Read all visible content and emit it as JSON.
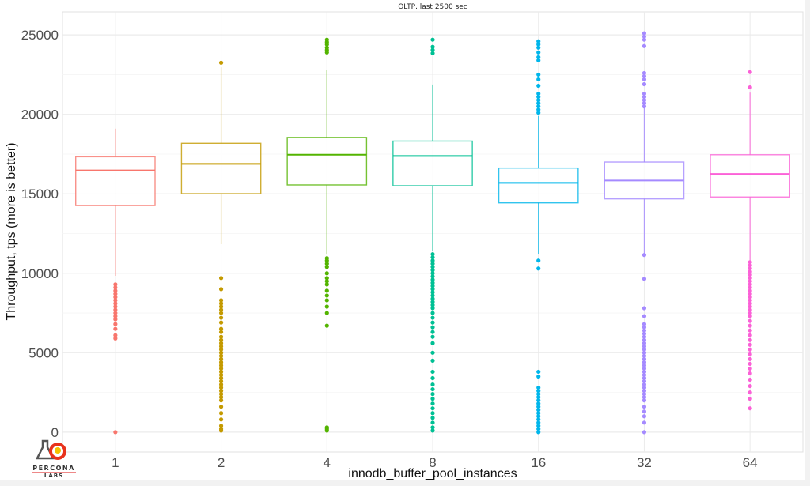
{
  "chart_data": {
    "type": "box",
    "title": "OLTP, last 2500 sec",
    "xlabel": "innodb_buffer_pool_instances",
    "ylabel": "Throughput, tps (more is better)",
    "ylim": [
      -1250,
      26450
    ],
    "yticks": [
      0,
      5000,
      10000,
      15000,
      20000,
      25000
    ],
    "grid": true,
    "legend": "none",
    "categories": [
      "1",
      "2",
      "4",
      "8",
      "16",
      "32",
      "64"
    ],
    "colors": [
      "#F8766D",
      "#C49A00",
      "#53B400",
      "#00C094",
      "#00B6EB",
      "#A58AFF",
      "#FB61D7"
    ],
    "boxes": [
      {
        "whisker_low": 9840,
        "q1": 14260,
        "median": 16470,
        "q3": 17330,
        "whisker_high": 19100,
        "outliers": [
          9300,
          9100,
          8900,
          8700,
          8500,
          8300,
          8100,
          7900,
          7700,
          7500,
          7300,
          7100,
          6800,
          6500,
          6100,
          5900,
          0
        ]
      },
      {
        "whisker_low": 11830,
        "q1": 15010,
        "median": 16880,
        "q3": 18180,
        "whisker_high": 22960,
        "outliers": [
          23250,
          9700,
          9000,
          8300,
          8100,
          7900,
          7700,
          7500,
          7200,
          6900,
          6500,
          6300,
          6000,
          5800,
          5600,
          5400,
          5200,
          5000,
          4800,
          4600,
          4400,
          4200,
          4000,
          3800,
          3600,
          3400,
          3200,
          3000,
          2800,
          2600,
          2400,
          2200,
          2000,
          1600,
          1200,
          800,
          400,
          200,
          100
        ]
      },
      {
        "whisker_low": 11180,
        "q1": 15560,
        "median": 17460,
        "q3": 18550,
        "whisker_high": 22800,
        "outliers": [
          24700,
          24550,
          24400,
          24200,
          24050,
          23900,
          10950,
          10800,
          10600,
          10400,
          10000,
          9700,
          9500,
          9300,
          8900,
          8600,
          8300,
          7900,
          7500,
          6700,
          300,
          200,
          100
        ]
      },
      {
        "whisker_low": 11380,
        "q1": 15510,
        "median": 17380,
        "q3": 18320,
        "whisker_high": 21880,
        "outliers": [
          24700,
          24250,
          24050,
          23850,
          11200,
          11000,
          10800,
          10600,
          10400,
          10200,
          10000,
          9800,
          9600,
          9400,
          9200,
          9000,
          8800,
          8600,
          8400,
          8200,
          8000,
          7800,
          7500,
          7200,
          6900,
          6600,
          6300,
          6000,
          5600,
          5000,
          4500,
          3800,
          3400,
          3000,
          2700,
          2400,
          2100,
          1800,
          1500,
          1200,
          900,
          600,
          300,
          100
        ]
      },
      {
        "whisker_low": 11200,
        "q1": 14430,
        "median": 15690,
        "q3": 16620,
        "whisker_high": 19900,
        "outliers": [
          24600,
          24400,
          24200,
          23900,
          23600,
          23400,
          22500,
          22200,
          21800,
          21300,
          21100,
          20900,
          20700,
          20500,
          20300,
          20100,
          10800,
          10300,
          3800,
          3500,
          2800,
          2600,
          2400,
          2200,
          2000,
          1800,
          1600,
          1400,
          1200,
          1000,
          800,
          600,
          400,
          200,
          0
        ]
      },
      {
        "whisker_low": 11200,
        "q1": 14680,
        "median": 15840,
        "q3": 17000,
        "whisker_high": 20400,
        "outliers": [
          25100,
          24900,
          24700,
          24300,
          22600,
          22400,
          22200,
          21900,
          21300,
          21100,
          20900,
          20700,
          20500,
          11150,
          9650,
          7800,
          7300,
          6800,
          6600,
          6400,
          6200,
          6000,
          5800,
          5600,
          5400,
          5200,
          5000,
          4800,
          4600,
          4400,
          4200,
          4000,
          3800,
          3600,
          3400,
          3200,
          3000,
          2800,
          2600,
          2400,
          2200,
          2000,
          1600,
          1300,
          1000,
          600,
          0
        ]
      },
      {
        "whisker_low": 10830,
        "q1": 14800,
        "median": 16250,
        "q3": 17460,
        "whisker_high": 21370,
        "outliers": [
          22660,
          21700,
          10700,
          10500,
          10300,
          10100,
          9900,
          9700,
          9500,
          9300,
          9100,
          8900,
          8700,
          8500,
          8300,
          8100,
          7900,
          7700,
          7500,
          7300,
          7000,
          6700,
          6400,
          6100,
          5800,
          5500,
          5200,
          4900,
          4600,
          4300,
          4000,
          3700,
          3300,
          2900,
          2500,
          2100,
          1500
        ]
      }
    ]
  },
  "logo": {
    "text1": "PERCONA",
    "text2": "LABS"
  }
}
